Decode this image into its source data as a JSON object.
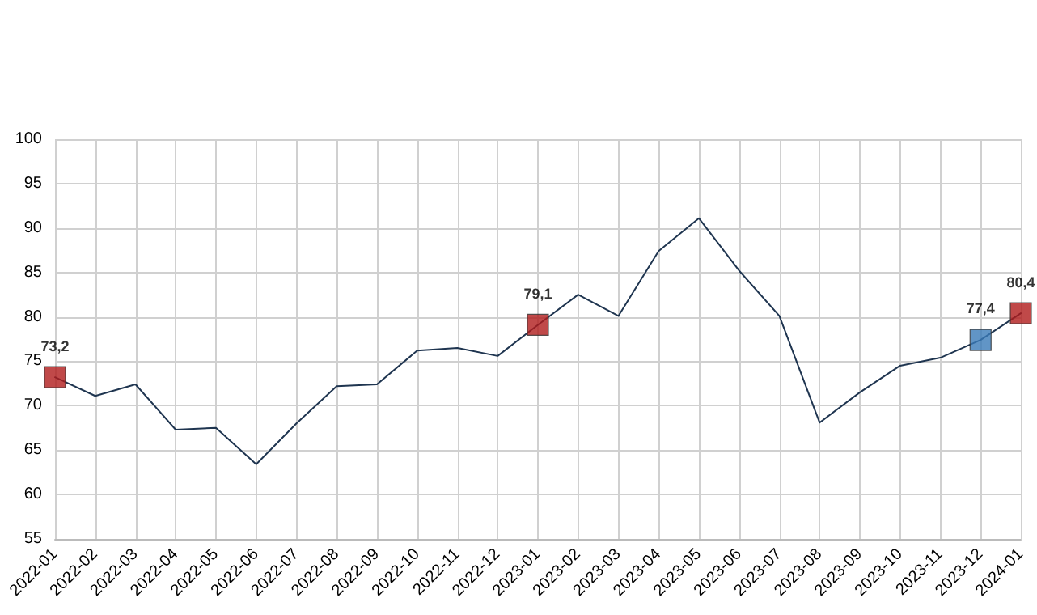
{
  "chart_data": {
    "type": "line",
    "categories": [
      "2022-01",
      "2022-02",
      "2022-03",
      "2022-04",
      "2022-05",
      "2022-06",
      "2022-07",
      "2022-08",
      "2022-09",
      "2022-10",
      "2022-11",
      "2022-12",
      "2023-01",
      "2023-02",
      "2023-03",
      "2023-04",
      "2023-05",
      "2023-06",
      "2023-07",
      "2023-08",
      "2023-09",
      "2023-10",
      "2023-11",
      "2023-12",
      "2024-01"
    ],
    "series": [
      {
        "color": "#1f3550",
        "marker": "none",
        "values": [
          73.2,
          71.1,
          72.4,
          67.3,
          67.5,
          63.4,
          68.0,
          72.2,
          72.4,
          76.2,
          76.5,
          75.6,
          79.1,
          82.5,
          80.1,
          87.4,
          91.1,
          85.2,
          80.1,
          68.1,
          71.5,
          74.5,
          75.4,
          77.4,
          80.4
        ]
      },
      {
        "type": "scatter",
        "marker": "square",
        "color": "#b01c1c",
        "values": [
          73.2,
          null,
          null,
          null,
          null,
          null,
          null,
          null,
          null,
          null,
          null,
          null,
          79.1,
          null,
          null,
          null,
          null,
          null,
          null,
          null,
          null,
          null,
          null,
          null,
          80.4
        ],
        "value_labels": [
          "73,2",
          null,
          null,
          null,
          null,
          null,
          null,
          null,
          null,
          null,
          null,
          null,
          "79,1",
          null,
          null,
          null,
          null,
          null,
          null,
          null,
          null,
          null,
          null,
          null,
          "80,4"
        ]
      },
      {
        "type": "scatter",
        "marker": "square",
        "color": "#3a7ab8",
        "values": [
          null,
          null,
          null,
          null,
          null,
          null,
          null,
          null,
          null,
          null,
          null,
          null,
          null,
          null,
          null,
          null,
          null,
          null,
          null,
          null,
          null,
          null,
          null,
          77.4,
          null
        ],
        "value_labels": [
          null,
          null,
          null,
          null,
          null,
          null,
          null,
          null,
          null,
          null,
          null,
          null,
          null,
          null,
          null,
          null,
          null,
          null,
          null,
          null,
          null,
          null,
          null,
          "77,4",
          null
        ]
      }
    ],
    "ylim": [
      55,
      100
    ],
    "yticks": [
      55,
      60,
      65,
      70,
      75,
      80,
      85,
      90,
      95,
      100
    ],
    "grid": true
  }
}
